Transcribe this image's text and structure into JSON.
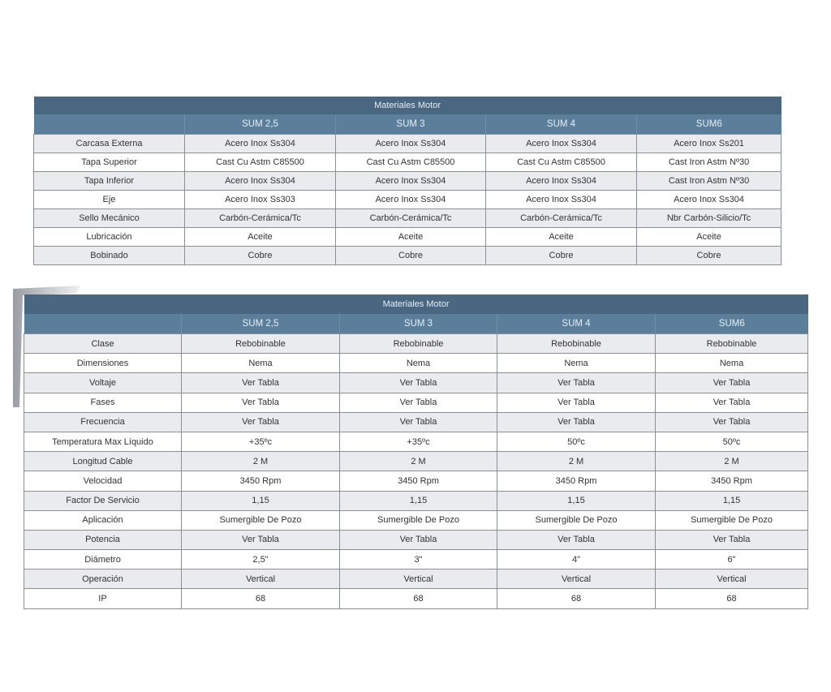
{
  "tables": [
    {
      "title": "Materiales Motor",
      "columns": [
        "",
        "SUM 2,5",
        "SUM 3",
        "SUM 4",
        "SUM6"
      ],
      "rows": [
        [
          "Carcasa Externa",
          "Acero Inox Ss304",
          "Acero Inox Ss304",
          "Acero Inox Ss304",
          "Acero Inox Ss201"
        ],
        [
          "Tapa Superior",
          "Cast Cu Astm C85500",
          "Cast Cu Astm C85500",
          "Cast Cu Astm C85500",
          "Cast Iron Astm Nº30"
        ],
        [
          "Tapa Inferior",
          "Acero Inox Ss304",
          "Acero Inox Ss304",
          "Acero Inox Ss304",
          "Cast Iron Astm Nº30"
        ],
        [
          "Eje",
          "Acero Inox Ss303",
          "Acero Inox Ss304",
          "Acero Inox Ss304",
          "Acero Inox Ss304"
        ],
        [
          "Sello Mecánico",
          "Carbón-Cerámica/Tc",
          "Carbón-Cerámica/Tc",
          "Carbón-Cerámica/Tc",
          "Nbr Carbón-Silicio/Tc"
        ],
        [
          "Lubricación",
          "Aceite",
          "Aceite",
          "Aceite",
          "Aceite"
        ],
        [
          "Bobinado",
          "Cobre",
          "Cobre",
          "Cobre",
          "Cobre"
        ]
      ]
    },
    {
      "title": "Materiales Motor",
      "columns": [
        "",
        "SUM 2,5",
        "SUM 3",
        "SUM 4",
        "SUM6"
      ],
      "rows": [
        [
          "Clase",
          "Rebobinable",
          "Rebobinable",
          "Rebobinable",
          "Rebobinable"
        ],
        [
          "Dimensiones",
          "Nema",
          "Nema",
          "Nema",
          "Nema"
        ],
        [
          "Voltaje",
          "Ver Tabla",
          "Ver Tabla",
          "Ver Tabla",
          "Ver Tabla"
        ],
        [
          "Fases",
          "Ver Tabla",
          "Ver Tabla",
          "Ver Tabla",
          "Ver Tabla"
        ],
        [
          "Frecuencia",
          "Ver Tabla",
          "Ver Tabla",
          "Ver Tabla",
          "Ver Tabla"
        ],
        [
          "Temperatura Max Líquido",
          "+35ºc",
          "+35ºc",
          "50ºc",
          "50ºc"
        ],
        [
          "Longitud Cable",
          "2 M",
          "2 M",
          "2 M",
          "2 M"
        ],
        [
          "Velocidad",
          "3450 Rpm",
          "3450 Rpm",
          "3450 Rpm",
          "3450 Rpm"
        ],
        [
          "Factor De Servicio",
          "1,15",
          "1,15",
          "1,15",
          "1,15"
        ],
        [
          "Aplicación",
          "Sumergible De Pozo",
          "Sumergible De Pozo",
          "Sumergible De Pozo",
          "Sumergible De Pozo"
        ],
        [
          "Potencia",
          "Ver Tabla",
          "Ver Tabla",
          "Ver Tabla",
          "Ver Tabla"
        ],
        [
          "Diámetro",
          "2,5\"",
          "3\"",
          "4\"",
          "6\""
        ],
        [
          "Operación",
          "Vertical",
          "Vertical",
          "Vertical",
          "Vertical"
        ],
        [
          "IP",
          "68",
          "68",
          "68",
          "68"
        ]
      ]
    }
  ],
  "colors": {
    "title_bar": "#4a6782",
    "header_row": "#5b7f9b",
    "alt_row": "#e9ebef"
  }
}
